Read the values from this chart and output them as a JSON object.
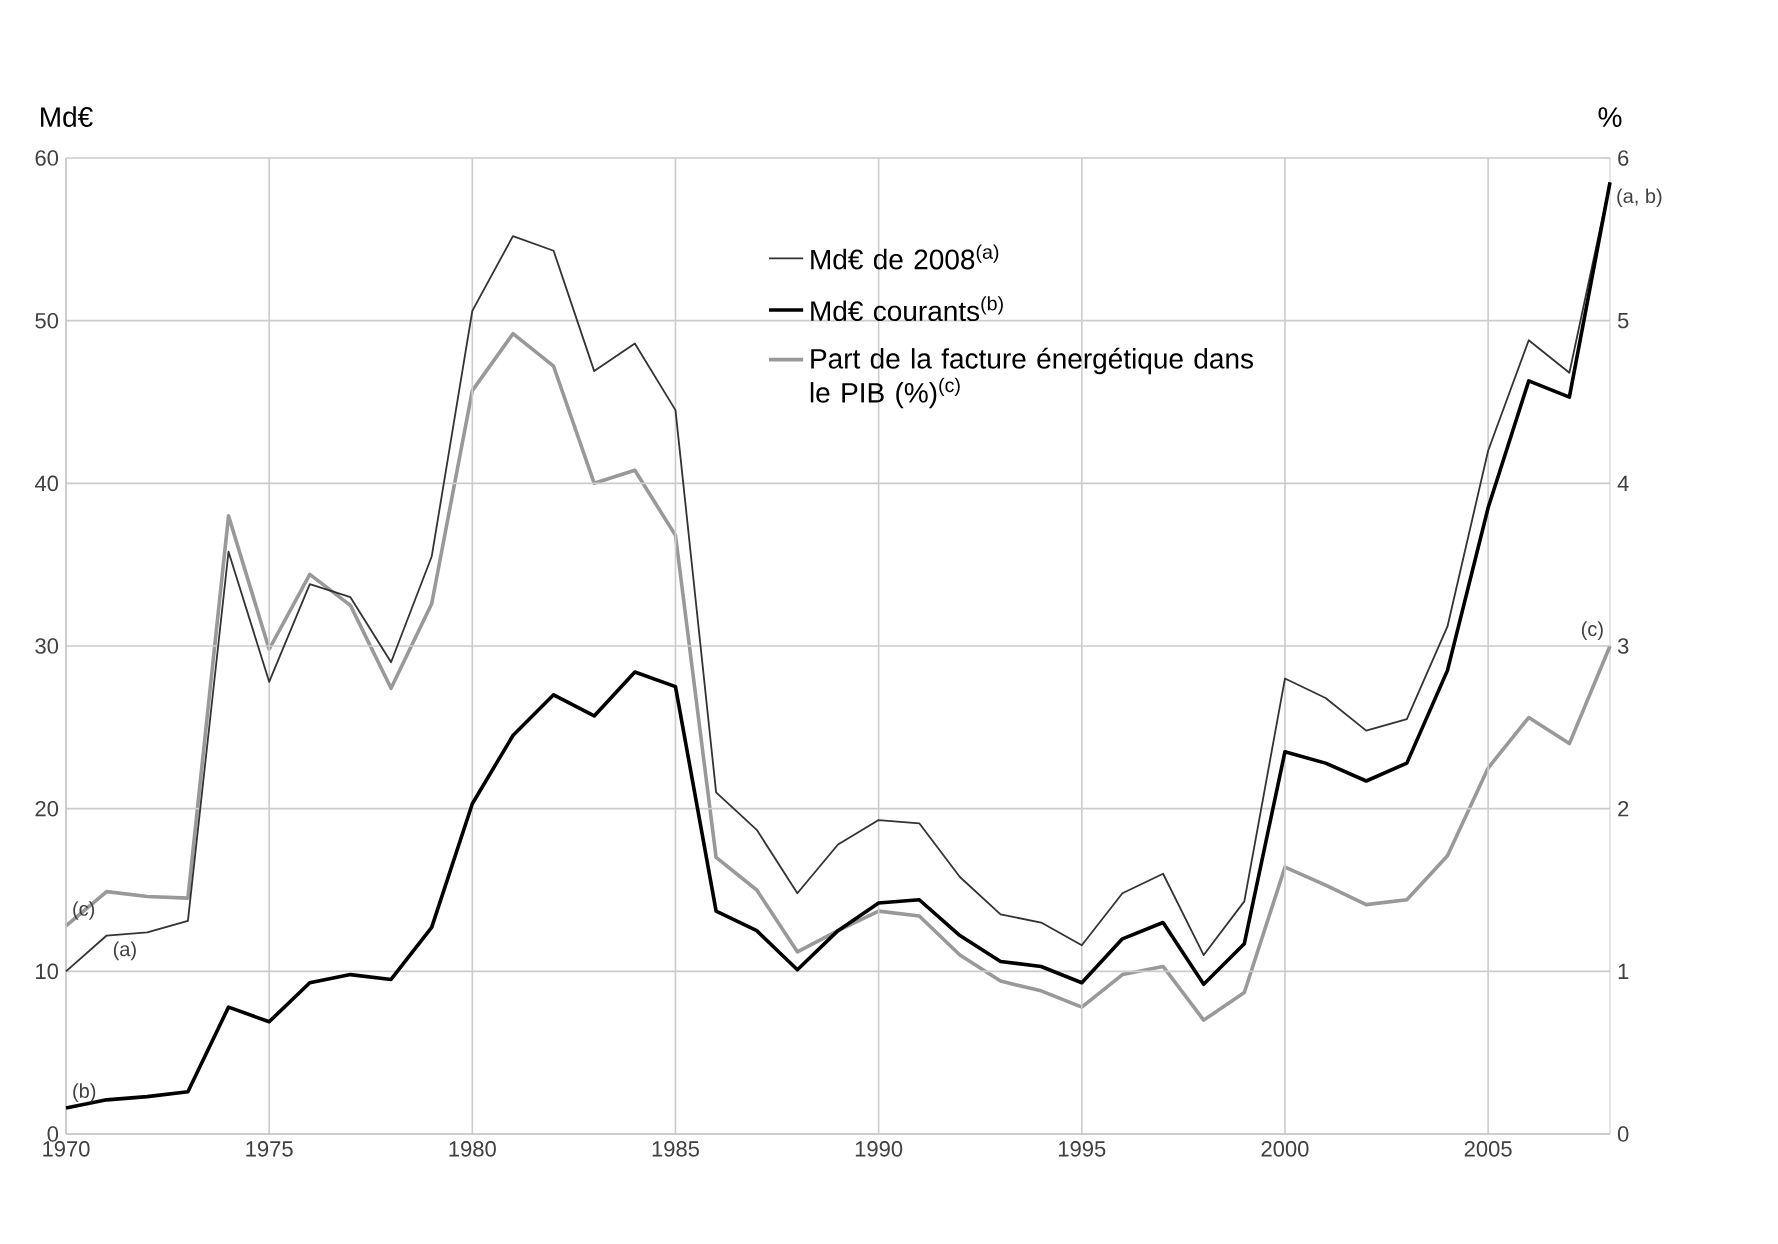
{
  "chart_data": {
    "type": "line",
    "ylabel": "Md€",
    "y2label": "%",
    "x": [
      1970,
      1971,
      1972,
      1973,
      1974,
      1975,
      1976,
      1977,
      1978,
      1979,
      1980,
      1981,
      1982,
      1983,
      1984,
      1985,
      1986,
      1987,
      1988,
      1989,
      1990,
      1991,
      1992,
      1993,
      1994,
      1995,
      1996,
      1997,
      1998,
      1999,
      2000,
      2001,
      2002,
      2003,
      2004,
      2005,
      2006,
      2007,
      2008
    ],
    "series": [
      {
        "name": "Md€ de 2008$^{(a)}$",
        "color": "#333333",
        "values": [
          10,
          12.2,
          12.4,
          13.1,
          35.8,
          27.8,
          33.8,
          33,
          29,
          35.5,
          50.6,
          55.2,
          54.3,
          46.9,
          48.6,
          44.5,
          21,
          18.7,
          14.8,
          17.8,
          19.3,
          19.1,
          15.8,
          13.5,
          13,
          11.6,
          14.8,
          16,
          11,
          14.3,
          28,
          26.8,
          24.8,
          25.5,
          31.2,
          42,
          48.8,
          46.8,
          58.5
        ]
      },
      {
        "name": "Md€ courants$^{(b)}$",
        "color": "#000000",
        "values": [
          1.6,
          2.1,
          2.3,
          2.6,
          7.8,
          6.9,
          9.3,
          9.8,
          9.5,
          12.7,
          20.3,
          24.5,
          27,
          25.7,
          28.4,
          27.5,
          13.7,
          12.5,
          10.1,
          12.5,
          14.2,
          14.4,
          12.2,
          10.6,
          10.3,
          9.3,
          12,
          13,
          9.2,
          11.7,
          23.5,
          22.8,
          21.7,
          22.8,
          28.5,
          38.5,
          46.3,
          45.3,
          58.5
        ]
      },
      {
        "name": "Part de la facture énergétique dans le PIB (%)$^{(c)}$",
        "color": "#999999",
        "axis": "y2",
        "values": [
          1.28,
          1.49,
          1.46,
          1.45,
          3.8,
          2.98,
          3.44,
          3.25,
          2.74,
          3.26,
          4.57,
          4.92,
          4.72,
          4.0,
          4.08,
          3.68,
          1.7,
          1.5,
          1.12,
          1.25,
          1.37,
          1.34,
          1.1,
          0.94,
          0.88,
          0.78,
          0.98,
          1.03,
          0.7,
          0.87,
          1.64,
          1.53,
          1.41,
          1.44,
          1.71,
          2.25,
          2.56,
          2.4,
          3.0
        ]
      }
    ],
    "xlim": [
      1970,
      2008
    ],
    "xticks": [
      1970,
      1975,
      1980,
      1985,
      1990,
      1995,
      2000,
      2005
    ],
    "ylim": [
      0,
      60
    ],
    "yticks": [
      0,
      10,
      20,
      30,
      40,
      50,
      60
    ],
    "y2lim": [
      0,
      6
    ],
    "y2ticks": [
      0,
      1,
      2,
      3,
      4,
      5,
      6
    ],
    "grid": true,
    "legend": "top",
    "annotations": [
      {
        "text": "(c)",
        "x": 1970,
        "y": 12.8
      },
      {
        "text": "(a)",
        "x": 1971,
        "y": 12.2
      },
      {
        "text": "(b)",
        "x": 1970,
        "y": 1.6
      },
      {
        "text": "(a, b)",
        "x": 2008,
        "y": 58.5
      },
      {
        "text": "(c)",
        "x": 2008,
        "y": 30
      }
    ]
  }
}
